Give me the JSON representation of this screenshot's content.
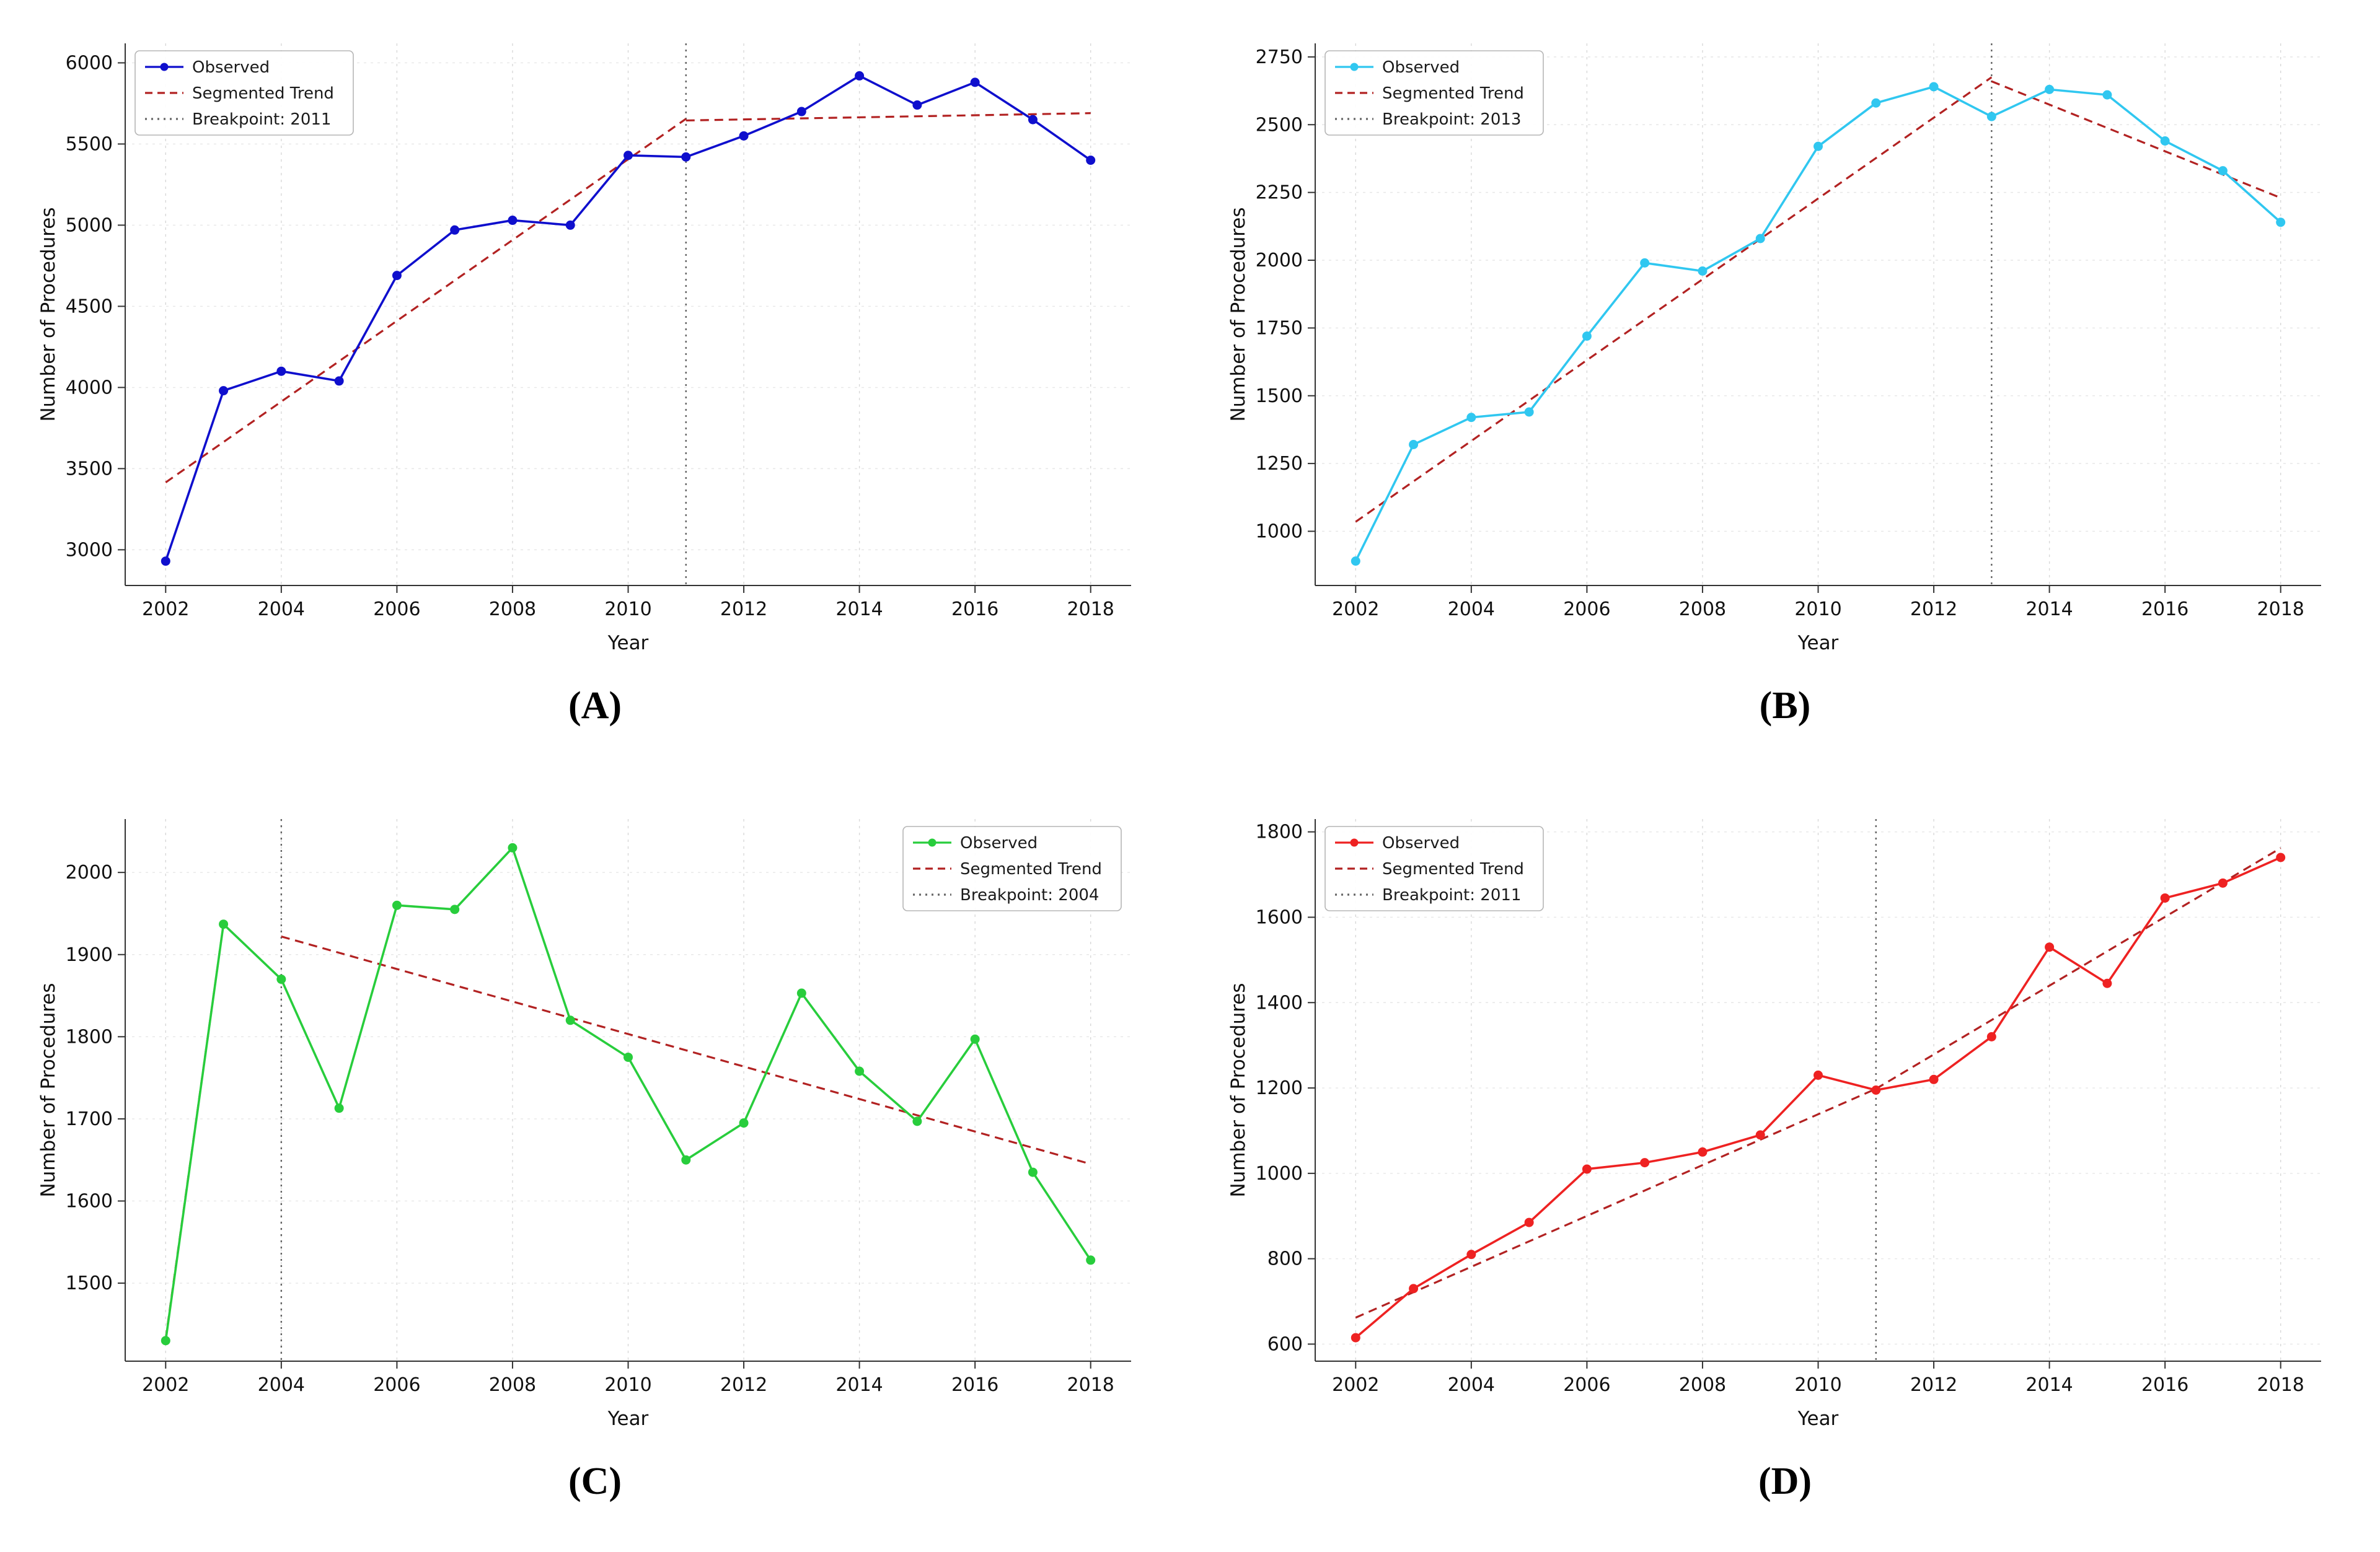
{
  "figure": {
    "xlabel": "Year",
    "ylabel": "Number of Procedures",
    "legend_labels": [
      "Observed",
      "Segmented Trend"
    ],
    "trend_color": "#b22222",
    "breakpoint_color": "#666666",
    "grid_color_v": "#d8d8d8",
    "grid_color_h": "#e7e7e7"
  },
  "chart_data": [
    {
      "type": "line",
      "panel_label": "(A)",
      "xlabel": "Year",
      "ylabel": "Number of Procedures",
      "x": [
        2002,
        2003,
        2004,
        2005,
        2006,
        2007,
        2008,
        2009,
        2010,
        2011,
        2012,
        2013,
        2014,
        2015,
        2016,
        2017,
        2018
      ],
      "series": [
        {
          "name": "Observed",
          "color": "#0f0fcd",
          "values": [
            2930,
            3980,
            4100,
            4040,
            4690,
            4970,
            5030,
            5000,
            5430,
            5420,
            5550,
            5700,
            5920,
            5740,
            5880,
            5650,
            5400
          ]
        }
      ],
      "trend": {
        "name": "Segmented Trend",
        "color": "#b22222",
        "segments": [
          [
            2002,
            3415,
            2011,
            5655
          ],
          [
            2011,
            5645,
            2018,
            5690
          ]
        ]
      },
      "breakpoint": {
        "name": "Breakpoint: 2011",
        "x": 2011,
        "color": "#666666"
      },
      "xlim": [
        2001.3,
        2018.7
      ],
      "ylim": [
        2780,
        6120
      ],
      "xticks": [
        2002,
        2004,
        2006,
        2008,
        2010,
        2012,
        2014,
        2016,
        2018
      ],
      "yticks": [
        3000,
        3500,
        4000,
        4500,
        5000,
        5500,
        6000
      ],
      "legend_pos": "top-left",
      "grid": true
    },
    {
      "type": "line",
      "panel_label": "(B)",
      "xlabel": "Year",
      "ylabel": "Number of Procedures",
      "x": [
        2002,
        2003,
        2004,
        2005,
        2006,
        2007,
        2008,
        2009,
        2010,
        2011,
        2012,
        2013,
        2014,
        2015,
        2016,
        2017,
        2018
      ],
      "series": [
        {
          "name": "Observed",
          "color": "#30c7f0",
          "values": [
            890,
            1320,
            1420,
            1440,
            1720,
            1990,
            1960,
            2080,
            2420,
            2580,
            2640,
            2530,
            2630,
            2610,
            2440,
            2330,
            2140
          ]
        }
      ],
      "trend": {
        "name": "Segmented Trend",
        "color": "#b22222",
        "segments": [
          [
            2002,
            1035,
            2013,
            2675
          ],
          [
            2013,
            2660,
            2018,
            2230
          ]
        ]
      },
      "breakpoint": {
        "name": "Breakpoint: 2013",
        "x": 2013,
        "color": "#666666"
      },
      "xlim": [
        2001.3,
        2018.7
      ],
      "ylim": [
        800,
        2800
      ],
      "xticks": [
        2002,
        2004,
        2006,
        2008,
        2010,
        2012,
        2014,
        2016,
        2018
      ],
      "yticks": [
        1000,
        1250,
        1500,
        1750,
        2000,
        2250,
        2500,
        2750
      ],
      "legend_pos": "top-left",
      "grid": true
    },
    {
      "type": "line",
      "panel_label": "(C)",
      "xlabel": "Year",
      "ylabel": "Number of Procedures",
      "x": [
        2002,
        2003,
        2004,
        2005,
        2006,
        2007,
        2008,
        2009,
        2010,
        2011,
        2012,
        2013,
        2014,
        2015,
        2016,
        2017,
        2018
      ],
      "series": [
        {
          "name": "Observed",
          "color": "#28cd3c",
          "values": [
            1430,
            1937,
            1870,
            1713,
            1960,
            1955,
            2030,
            1820,
            1775,
            1650,
            1695,
            1853,
            1758,
            1697,
            1797,
            1635,
            1528
          ]
        }
      ],
      "trend": {
        "name": "Segmented Trend",
        "color": "#b22222",
        "segments": [
          [
            2002,
            1432,
            2003,
            1937
          ],
          [
            2004,
            1922,
            2018,
            1645
          ]
        ]
      },
      "breakpoint": {
        "name": "Breakpoint: 2004",
        "x": 2004,
        "color": "#666666"
      },
      "xlim": [
        2001.3,
        2018.7
      ],
      "ylim": [
        1405,
        2065
      ],
      "xticks": [
        2002,
        2004,
        2006,
        2008,
        2010,
        2012,
        2014,
        2016,
        2018
      ],
      "yticks": [
        1500,
        1600,
        1700,
        1800,
        1900,
        2000
      ],
      "legend_pos": "top-right",
      "grid": true
    },
    {
      "type": "line",
      "panel_label": "(D)",
      "xlabel": "Year",
      "ylabel": "Number of Procedures",
      "x": [
        2002,
        2003,
        2004,
        2005,
        2006,
        2007,
        2008,
        2009,
        2010,
        2011,
        2012,
        2013,
        2014,
        2015,
        2016,
        2017,
        2018
      ],
      "series": [
        {
          "name": "Observed",
          "color": "#ee2222",
          "values": [
            615,
            730,
            810,
            885,
            1010,
            1025,
            1050,
            1090,
            1230,
            1195,
            1220,
            1320,
            1530,
            1445,
            1645,
            1680,
            1740
          ]
        }
      ],
      "trend": {
        "name": "Segmented Trend",
        "color": "#b22222",
        "segments": [
          [
            2002,
            662,
            2011,
            1198
          ],
          [
            2011,
            1198,
            2018,
            1762
          ]
        ]
      },
      "breakpoint": {
        "name": "Breakpoint: 2011",
        "x": 2011,
        "color": "#666666"
      },
      "xlim": [
        2001.3,
        2018.7
      ],
      "ylim": [
        560,
        1830
      ],
      "xticks": [
        2002,
        2004,
        2006,
        2008,
        2010,
        2012,
        2014,
        2016,
        2018
      ],
      "yticks": [
        600,
        800,
        1000,
        1200,
        1400,
        1600,
        1800
      ],
      "legend_pos": "top-left",
      "grid": true
    }
  ]
}
